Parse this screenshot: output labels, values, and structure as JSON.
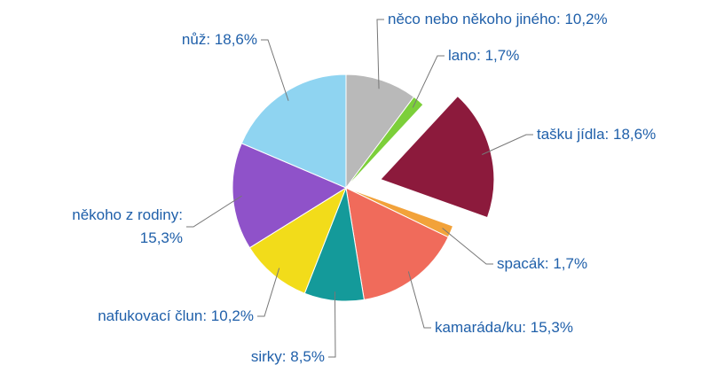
{
  "chart_data": {
    "type": "pie",
    "categories": [
      "něco nebo někoho jiného",
      "lano",
      "tašku jídla",
      "spacák",
      "kamaráda/ku",
      "sirky",
      "nafukovací člun",
      "někoho z rodiny",
      "nůž"
    ],
    "values": [
      10.2,
      1.7,
      18.6,
      1.7,
      15.3,
      8.5,
      10.2,
      15.3,
      18.6
    ],
    "value_labels": [
      "10,2%",
      "1,7%",
      "18,6%",
      "1,7%",
      "15,3%",
      "8,5%",
      "10,2%",
      "15,3%",
      "18,6%"
    ],
    "colors": [
      "#b9b9b9",
      "#7ccf3a",
      "#8c1a3c",
      "#f2a23a",
      "#f06b5b",
      "#149a9a",
      "#f2dc1a",
      "#8f52c9",
      "#8fd4f1"
    ],
    "exploded": [
      2
    ]
  }
}
